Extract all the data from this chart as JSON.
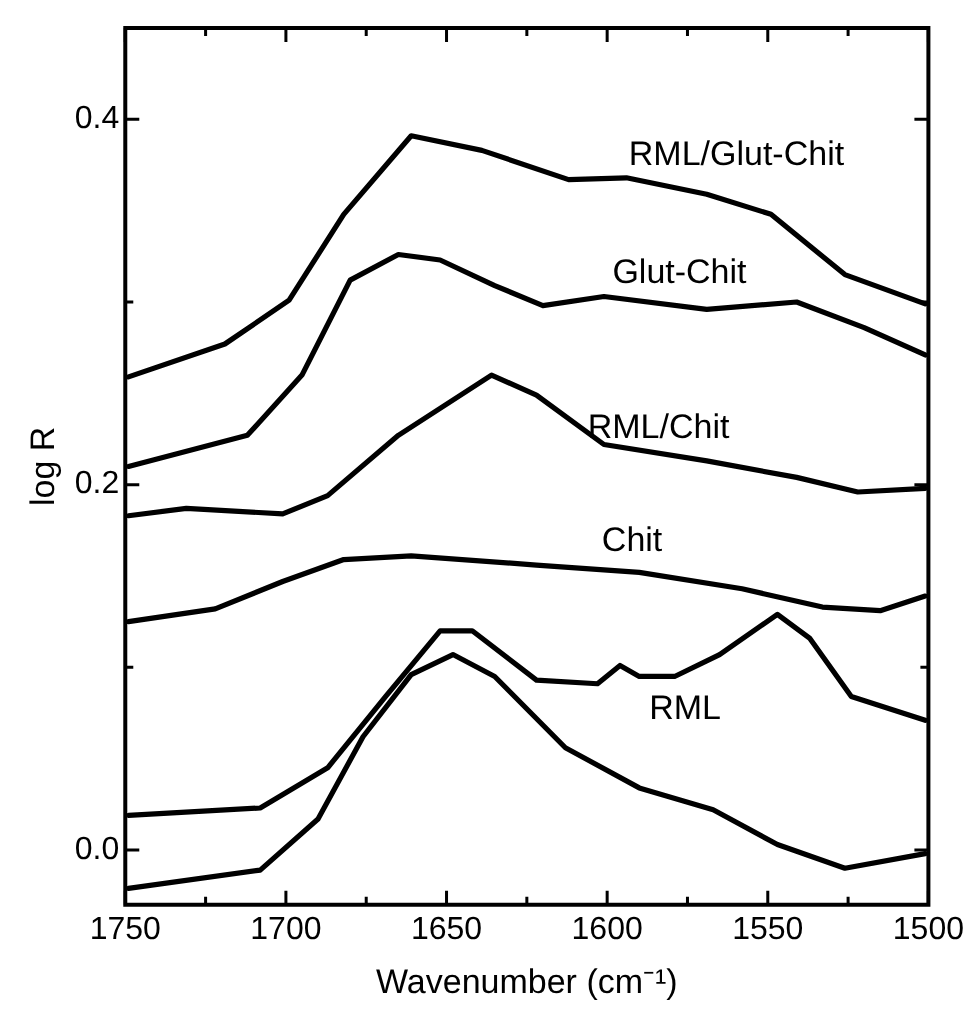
{
  "chart_data": {
    "type": "line",
    "xlabel": "Wavenumber (cm⁻¹)",
    "ylabel": "log R",
    "xlim": [
      1750,
      1500
    ],
    "xticks": [
      1750,
      {
        "value": 1725,
        "label": null
      },
      1700,
      {
        "value": 1675,
        "label": null
      },
      1650,
      {
        "value": 1625,
        "label": null
      },
      1600,
      {
        "value": 1575,
        "label": null
      },
      1550,
      {
        "value": 1525,
        "label": null
      },
      1500
    ],
    "ylim": [
      -0.03,
      0.45
    ],
    "yticks": [
      {
        "value": 0,
        "label": "0.0"
      },
      {
        "value": 0.1,
        "label": null
      },
      0.2,
      {
        "value": 0.3,
        "label": null
      },
      0.4
    ],
    "grid": false,
    "legend": false,
    "marker": "none",
    "line_style": "solid",
    "series": [
      {
        "name": "RML/Glut-Chit",
        "color": "#000000",
        "x": [
          1749,
          1719,
          1699,
          1682,
          1661,
          1639,
          1612,
          1594,
          1569,
          1549,
          1526,
          1501
        ],
        "values": [
          0.259,
          0.277,
          0.301,
          0.348,
          0.391,
          0.383,
          0.367,
          0.368,
          0.359,
          0.348,
          0.315,
          0.299
        ]
      },
      {
        "name": "Glut-Chit",
        "color": "#000000",
        "x": [
          1749,
          1712,
          1695,
          1680,
          1665,
          1652,
          1635,
          1620,
          1601,
          1569,
          1541,
          1520,
          1501
        ],
        "values": [
          0.21,
          0.227,
          0.26,
          0.312,
          0.326,
          0.323,
          0.309,
          0.298,
          0.303,
          0.296,
          0.3,
          0.286,
          0.271
        ]
      },
      {
        "name": "RML/Chit",
        "color": "#000000",
        "x": [
          1749,
          1731,
          1701,
          1687,
          1665,
          1636,
          1622,
          1601,
          1569,
          1541,
          1522,
          1501
        ],
        "values": [
          0.183,
          0.187,
          0.184,
          0.194,
          0.227,
          0.26,
          0.249,
          0.222,
          0.213,
          0.204,
          0.196,
          0.198
        ]
      },
      {
        "name": "Chit",
        "color": "#000000",
        "x": [
          1749,
          1722,
          1701,
          1682,
          1661,
          1622,
          1590,
          1558,
          1533,
          1515,
          1501
        ],
        "values": [
          0.125,
          0.132,
          0.147,
          0.159,
          0.161,
          0.156,
          0.152,
          0.143,
          0.133,
          0.131,
          0.139
        ]
      },
      {
        "name": "RML",
        "color": "#000000",
        "x": [
          1749,
          1708,
          1687,
          1669,
          1652,
          1642,
          1622,
          1603,
          1596,
          1590,
          1579,
          1565,
          1547,
          1537,
          1524,
          1501
        ],
        "values": [
          0.019,
          0.023,
          0.045,
          0.084,
          0.12,
          0.12,
          0.093,
          0.091,
          0.101,
          0.095,
          0.095,
          0.107,
          0.129,
          0.116,
          0.084,
          0.071
        ]
      },
      {
        "color": "#000000",
        "x": [
          1749,
          1708,
          1690,
          1676,
          1661,
          1648,
          1635,
          1613,
          1590,
          1567,
          1547,
          1526,
          1501
        ],
        "values": [
          -0.021,
          -0.011,
          0.017,
          0.062,
          0.096,
          0.107,
          0.095,
          0.056,
          0.034,
          0.022,
          0.003,
          -0.01,
          -0.002
        ]
      }
    ]
  }
}
